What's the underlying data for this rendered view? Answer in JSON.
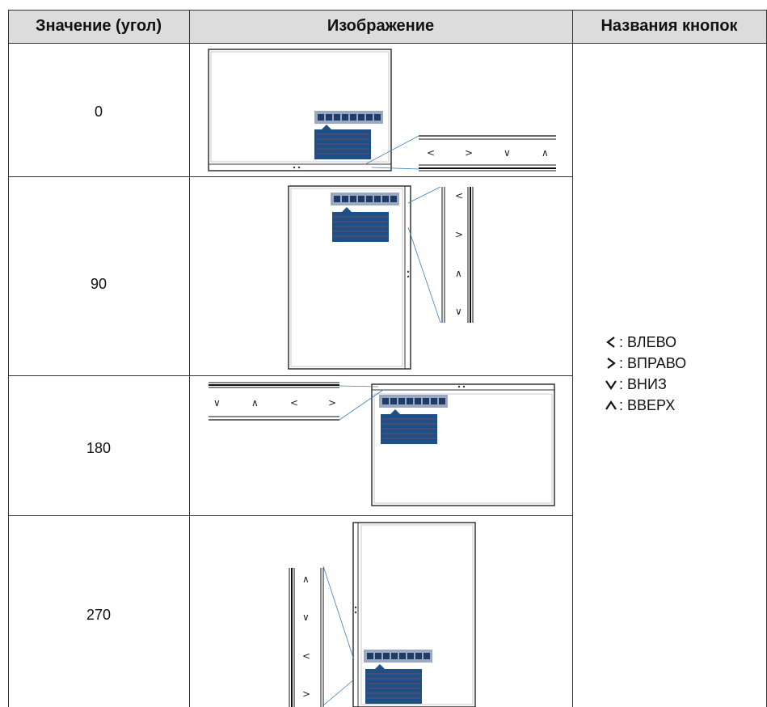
{
  "table": {
    "headers": {
      "angle": "Значение (угол)",
      "image": "Изображение",
      "buttons": "Названия кнопок"
    },
    "rows": [
      {
        "angle": "0"
      },
      {
        "angle": "90"
      },
      {
        "angle": "180"
      },
      {
        "angle": "270"
      }
    ]
  },
  "legend": [
    {
      "icon": "chevron-left-icon",
      "label": ": ВЛЕВО"
    },
    {
      "icon": "chevron-right-icon",
      "label": ": ВПРАВО"
    },
    {
      "icon": "chevron-down-icon",
      "label": ": ВНИЗ"
    },
    {
      "icon": "chevron-up-icon",
      "label": ": ВВЕРХ"
    }
  ],
  "glyphs": {
    "left": "<",
    "right": ">",
    "down": "∨",
    "up": "∧"
  },
  "colors": {
    "header_bg": "#dcdcdc",
    "osd_bar": "#9aa8c2",
    "osd_panel": "#1e4f86",
    "osd_lines": "#c04848",
    "callout": "#3a7fc1"
  }
}
